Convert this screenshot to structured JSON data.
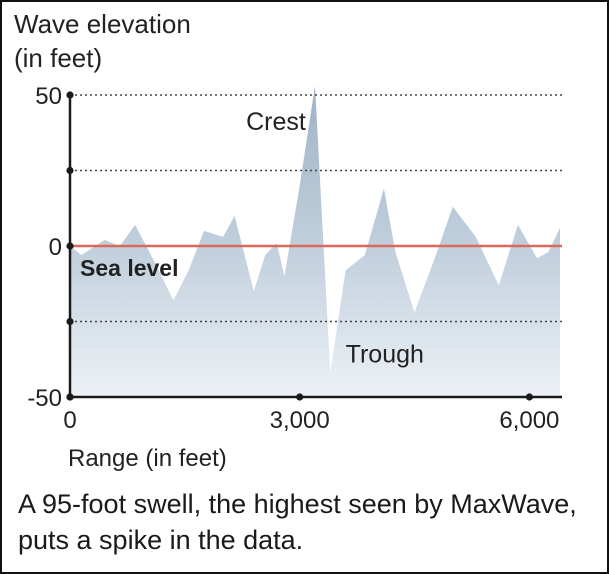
{
  "chart_data": {
    "type": "area",
    "title_line1": "Wave elevation",
    "title_line2": "(in feet)",
    "xlabel": "Range (in feet)",
    "xlim": [
      0,
      6400
    ],
    "ylim": [
      -50,
      50
    ],
    "x_ticks": [
      0,
      3000,
      6000
    ],
    "x_tick_labels": [
      "0",
      "3,000",
      "6,000"
    ],
    "y_ticks": [
      50,
      0,
      -50
    ],
    "y_tick_labels": [
      "50",
      "0",
      "-50"
    ],
    "minor_y_gridlines": [
      25,
      -25
    ],
    "reference_line": {
      "label": "Sea level",
      "y": 0
    },
    "annotations": [
      {
        "text": "Crest",
        "x": 2300,
        "y": 41
      },
      {
        "text": "Trough",
        "x": 3600,
        "y": -36
      }
    ],
    "series": [
      {
        "name": "Wave elevation",
        "x": [
          0,
          150,
          450,
          650,
          850,
          1100,
          1350,
          1550,
          1750,
          2000,
          2150,
          2400,
          2550,
          2700,
          2800,
          3000,
          3200,
          3400,
          3600,
          3850,
          4100,
          4250,
          4500,
          4750,
          5000,
          5300,
          5600,
          5850,
          6100,
          6250,
          6400
        ],
        "y": [
          0,
          -3,
          2,
          0,
          7,
          -5,
          -18,
          -8,
          5,
          3,
          10,
          -15,
          -3,
          1,
          -10,
          20,
          53,
          -42,
          -8,
          -3,
          19,
          -2,
          -22,
          -5,
          13,
          3,
          -13,
          7,
          -4,
          -2,
          6
        ]
      }
    ],
    "caption": "A 95-foot swell, the highest seen by MaxWave, puts a spike in the data."
  }
}
